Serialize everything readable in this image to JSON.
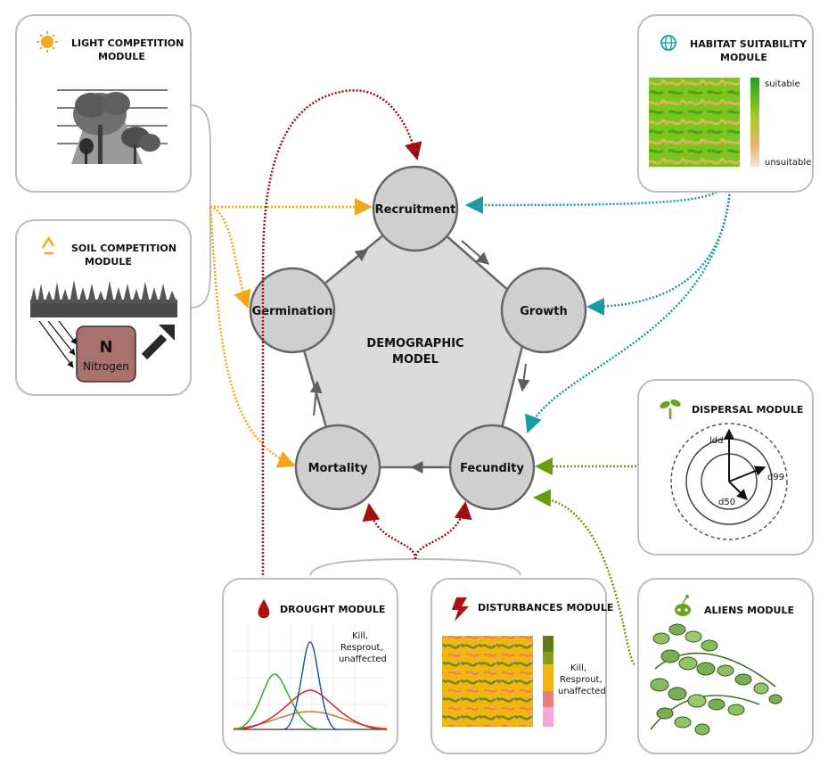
{
  "center": {
    "line1": "DEMOGRAPHIC",
    "line2": "MODEL"
  },
  "nodes": {
    "recruitment": "Recruitment",
    "growth": "Growth",
    "fecundity": "Fecundity",
    "mortality": "Mortality",
    "germination": "Germination"
  },
  "modules": {
    "light": {
      "line1": "LIGHT COMPETITION",
      "line2": "MODULE"
    },
    "soil": {
      "line1": "SOIL COMPETITION",
      "line2": "MODULE",
      "nitrogen_symbol": "N",
      "nitrogen_label": "Nitrogen"
    },
    "habitat": {
      "line1": "HABITAT SUITABILITY",
      "line2": "MODULE",
      "scale_top": "suitable",
      "scale_bottom": "unsuitable"
    },
    "dispersal": {
      "title": "DISPERSAL MODULE",
      "ldd": "ldd",
      "d99": "d99",
      "d50": "d50"
    },
    "drought": {
      "title": "DROUGHT MODULE",
      "legend1": "Kill,",
      "legend2": "Resprout,",
      "legend3": "unaffected"
    },
    "disturbances": {
      "title": "DISTURBANCES MODULE",
      "legend1": "Kill,",
      "legend2": "Resprout,",
      "legend3": "unaffected"
    },
    "aliens": {
      "title": "ALIENS MODULE"
    }
  },
  "colors": {
    "orange_arrows": "#f2a516",
    "teal_arrows": "#1a9c9c",
    "darkred_arrows": "#a01010",
    "green_arrows": "#6e9a10",
    "node_fill": "#cfcfcf",
    "pentagon_fill": "#dadada"
  }
}
